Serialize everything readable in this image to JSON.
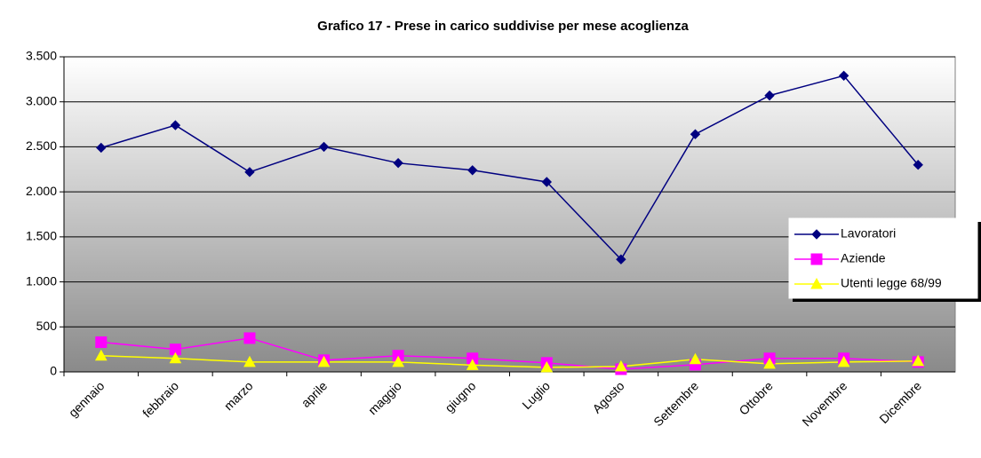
{
  "chart_data": {
    "type": "line",
    "title": "Grafico 17 - Prese in carico suddivise per mese acoglienza",
    "categories": [
      "gennaio",
      "febbraio",
      "marzo",
      "aprile",
      "maggio",
      "giugno",
      "Luglio",
      "Agosto",
      "Settembre",
      "Ottobre",
      "Novembre",
      "Dicembre"
    ],
    "series": [
      {
        "name": "Lavoratori",
        "color": "#000080",
        "marker": "diamond",
        "values": [
          2490,
          2740,
          2220,
          2500,
          2320,
          2240,
          2110,
          1250,
          2640,
          3070,
          3290,
          2300
        ]
      },
      {
        "name": "Aziende",
        "color": "#ff00ff",
        "marker": "square",
        "values": [
          330,
          250,
          375,
          130,
          180,
          150,
          100,
          30,
          80,
          150,
          150,
          110
        ]
      },
      {
        "name": "Utenti legge 68/99",
        "color": "#ffff00",
        "marker": "triangle",
        "values": [
          180,
          150,
          110,
          110,
          110,
          75,
          50,
          60,
          140,
          90,
          110,
          120
        ]
      }
    ],
    "ylim": [
      0,
      3500
    ],
    "yticks": [
      0,
      {
        "value": 500,
        "label": "500"
      },
      {
        "value": 1000,
        "label": "1.000"
      },
      {
        "value": 1500,
        "label": "1.500"
      },
      {
        "value": 2000,
        "label": "2.000"
      },
      {
        "value": 2500,
        "label": "2.500"
      },
      {
        "value": 3000,
        "label": "3.000"
      },
      {
        "value": 3500,
        "label": "3.500"
      }
    ],
    "grid": true,
    "legend": "right"
  }
}
